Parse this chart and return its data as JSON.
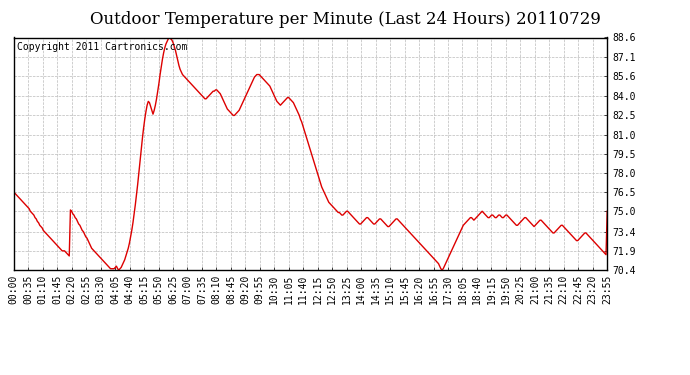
{
  "title": "Outdoor Temperature per Minute (Last 24 Hours) 20110729",
  "copyright_text": "Copyright 2011 Cartronics.com",
  "line_color": "#dd0000",
  "background_color": "#ffffff",
  "plot_bg_color": "#ffffff",
  "grid_color": "#bbbbbb",
  "yticks": [
    70.4,
    71.9,
    73.4,
    75.0,
    76.5,
    78.0,
    79.5,
    81.0,
    82.5,
    84.0,
    85.6,
    87.1,
    88.6
  ],
  "ylim": [
    70.4,
    88.6
  ],
  "xtick_labels": [
    "00:00",
    "00:35",
    "01:10",
    "01:45",
    "02:20",
    "02:55",
    "03:30",
    "04:05",
    "04:40",
    "05:15",
    "05:50",
    "06:25",
    "07:00",
    "07:35",
    "08:10",
    "08:45",
    "09:20",
    "09:55",
    "10:30",
    "11:05",
    "11:40",
    "12:15",
    "12:50",
    "13:25",
    "14:00",
    "14:35",
    "15:10",
    "15:45",
    "16:20",
    "16:55",
    "17:30",
    "18:05",
    "18:40",
    "19:15",
    "19:50",
    "20:25",
    "21:00",
    "21:35",
    "22:10",
    "22:45",
    "23:20",
    "23:55"
  ],
  "title_fontsize": 12,
  "tick_fontsize": 7,
  "copyright_fontsize": 7,
  "line_width": 1.0,
  "temperature_data": [
    76.5,
    76.4,
    76.3,
    76.2,
    76.1,
    76.0,
    75.9,
    75.8,
    75.7,
    75.6,
    75.5,
    75.4,
    75.3,
    75.2,
    75.0,
    74.9,
    74.8,
    74.7,
    74.5,
    74.4,
    74.2,
    74.1,
    73.9,
    73.8,
    73.7,
    73.5,
    73.4,
    73.3,
    73.2,
    73.1,
    73.0,
    72.9,
    72.8,
    72.7,
    72.6,
    72.5,
    72.4,
    72.3,
    72.2,
    72.1,
    72.0,
    71.9,
    71.9,
    71.9,
    71.8,
    71.7,
    71.6,
    71.5,
    75.1,
    75.0,
    74.8,
    74.7,
    74.5,
    74.4,
    74.2,
    74.0,
    73.9,
    73.7,
    73.5,
    73.4,
    73.2,
    73.0,
    72.9,
    72.7,
    72.5,
    72.3,
    72.1,
    72.0,
    71.9,
    71.8,
    71.7,
    71.6,
    71.5,
    71.4,
    71.3,
    71.2,
    71.1,
    71.0,
    70.9,
    70.8,
    70.7,
    70.6,
    70.5,
    70.5,
    70.5,
    70.5,
    70.6,
    70.7,
    70.5,
    70.4,
    70.5,
    70.6,
    70.8,
    71.0,
    71.2,
    71.5,
    71.8,
    72.1,
    72.5,
    73.0,
    73.5,
    74.1,
    74.8,
    75.5,
    76.3,
    77.1,
    78.0,
    78.9,
    79.8,
    80.7,
    81.5,
    82.2,
    82.8,
    83.3,
    83.6,
    83.5,
    83.2,
    82.9,
    82.6,
    82.9,
    83.3,
    83.8,
    84.4,
    85.0,
    85.7,
    86.3,
    86.9,
    87.4,
    87.8,
    88.1,
    88.3,
    88.5,
    88.6,
    88.5,
    88.4,
    88.2,
    87.9,
    87.6,
    87.2,
    86.8,
    86.4,
    86.1,
    85.9,
    85.7,
    85.6,
    85.5,
    85.4,
    85.3,
    85.2,
    85.1,
    85.0,
    84.9,
    84.8,
    84.7,
    84.6,
    84.5,
    84.4,
    84.3,
    84.2,
    84.1,
    84.0,
    83.9,
    83.8,
    83.8,
    83.9,
    84.0,
    84.1,
    84.2,
    84.3,
    84.4,
    84.4,
    84.5,
    84.5,
    84.4,
    84.3,
    84.2,
    84.0,
    83.8,
    83.6,
    83.4,
    83.2,
    83.0,
    82.9,
    82.8,
    82.7,
    82.6,
    82.5,
    82.5,
    82.6,
    82.7,
    82.8,
    82.9,
    83.1,
    83.3,
    83.5,
    83.7,
    83.9,
    84.1,
    84.3,
    84.5,
    84.7,
    84.9,
    85.1,
    85.3,
    85.5,
    85.6,
    85.7,
    85.7,
    85.7,
    85.6,
    85.5,
    85.4,
    85.3,
    85.2,
    85.1,
    85.0,
    84.9,
    84.8,
    84.6,
    84.4,
    84.2,
    84.0,
    83.8,
    83.6,
    83.5,
    83.4,
    83.3,
    83.4,
    83.5,
    83.6,
    83.7,
    83.8,
    83.9,
    83.9,
    83.8,
    83.7,
    83.6,
    83.5,
    83.3,
    83.1,
    82.9,
    82.7,
    82.5,
    82.2,
    82.0,
    81.7,
    81.4,
    81.1,
    80.8,
    80.5,
    80.2,
    79.9,
    79.6,
    79.3,
    79.0,
    78.7,
    78.4,
    78.1,
    77.8,
    77.5,
    77.2,
    76.9,
    76.7,
    76.5,
    76.3,
    76.1,
    75.9,
    75.7,
    75.6,
    75.5,
    75.4,
    75.3,
    75.2,
    75.1,
    75.0,
    74.9,
    74.9,
    74.8,
    74.7,
    74.7,
    74.8,
    74.9,
    75.0,
    75.0,
    74.9,
    74.8,
    74.7,
    74.6,
    74.5,
    74.4,
    74.3,
    74.2,
    74.1,
    74.0,
    74.0,
    74.1,
    74.2,
    74.3,
    74.4,
    74.5,
    74.5,
    74.4,
    74.3,
    74.2,
    74.1,
    74.0,
    74.0,
    74.1,
    74.2,
    74.3,
    74.4,
    74.4,
    74.3,
    74.2,
    74.1,
    74.0,
    73.9,
    73.8,
    73.8,
    73.9,
    74.0,
    74.1,
    74.2,
    74.3,
    74.4,
    74.4,
    74.3,
    74.2,
    74.1,
    74.0,
    73.9,
    73.8,
    73.7,
    73.6,
    73.5,
    73.4,
    73.3,
    73.2,
    73.1,
    73.0,
    72.9,
    72.8,
    72.7,
    72.6,
    72.5,
    72.4,
    72.3,
    72.2,
    72.1,
    72.0,
    71.9,
    71.8,
    71.7,
    71.6,
    71.5,
    71.4,
    71.3,
    71.2,
    71.1,
    71.0,
    70.9,
    70.7,
    70.5,
    70.4,
    70.5,
    70.7,
    70.9,
    71.1,
    71.3,
    71.5,
    71.7,
    71.9,
    72.1,
    72.3,
    72.5,
    72.7,
    72.9,
    73.1,
    73.3,
    73.5,
    73.7,
    73.9,
    74.0,
    74.1,
    74.2,
    74.3,
    74.4,
    74.5,
    74.5,
    74.4,
    74.3,
    74.4,
    74.5,
    74.6,
    74.7,
    74.8,
    74.9,
    75.0,
    74.9,
    74.8,
    74.7,
    74.6,
    74.5,
    74.5,
    74.6,
    74.7,
    74.7,
    74.6,
    74.5,
    74.5,
    74.6,
    74.7,
    74.7,
    74.6,
    74.5,
    74.5,
    74.6,
    74.7,
    74.7,
    74.6,
    74.5,
    74.4,
    74.3,
    74.2,
    74.1,
    74.0,
    73.9,
    73.9,
    74.0,
    74.1,
    74.2,
    74.3,
    74.4,
    74.5,
    74.5,
    74.4,
    74.3,
    74.2,
    74.1,
    74.0,
    73.9,
    73.8,
    73.9,
    74.0,
    74.1,
    74.2,
    74.3,
    74.3,
    74.2,
    74.1,
    74.0,
    73.9,
    73.8,
    73.7,
    73.6,
    73.5,
    73.4,
    73.3,
    73.3,
    73.4,
    73.5,
    73.6,
    73.7,
    73.8,
    73.9,
    73.9,
    73.8,
    73.7,
    73.6,
    73.5,
    73.4,
    73.3,
    73.2,
    73.1,
    73.0,
    72.9,
    72.8,
    72.7,
    72.7,
    72.8,
    72.9,
    73.0,
    73.1,
    73.2,
    73.3,
    73.3,
    73.2,
    73.1,
    73.0,
    72.9,
    72.8,
    72.7,
    72.6,
    72.5,
    72.4,
    72.3,
    72.2,
    72.1,
    72.0,
    71.9,
    71.8,
    71.7,
    71.6,
    75.0
  ]
}
